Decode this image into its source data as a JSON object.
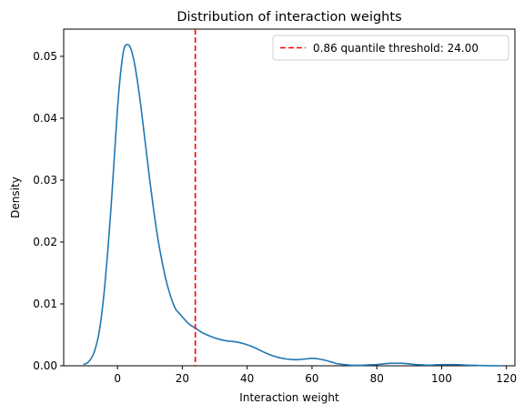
{
  "chart_data": {
    "type": "line",
    "title": "Distribution of interaction weights",
    "xlabel": "Interaction weight",
    "ylabel": "Density",
    "xlim": [
      -16.6,
      122.6
    ],
    "ylim": [
      0,
      0.0544
    ],
    "xticks": [
      0,
      20,
      40,
      60,
      80,
      100,
      120
    ],
    "yticks": [
      0.0,
      0.01,
      0.02,
      0.03,
      0.04,
      0.05
    ],
    "ytick_labels": [
      "0.00",
      "0.01",
      "0.02",
      "0.03",
      "0.04",
      "0.05"
    ],
    "grid": false,
    "legend_position": "top-right",
    "series": [
      {
        "kind": "kde",
        "color": "#1f77b4",
        "x": [
          -10.5,
          -9,
          -7.5,
          -6,
          -5,
          -4,
          -3,
          -2,
          -1,
          0,
          1,
          2,
          3,
          4,
          5,
          6,
          7,
          8,
          9,
          10,
          11,
          12,
          13,
          14,
          15,
          16,
          17,
          18,
          19,
          20,
          21,
          22,
          23,
          24,
          26,
          28,
          30,
          32,
          34,
          36,
          38,
          40,
          42,
          44,
          46,
          48,
          50,
          52,
          54,
          56,
          58,
          60,
          62,
          64,
          66,
          68,
          70,
          72,
          74,
          76,
          78,
          80,
          82,
          84,
          86,
          88,
          90,
          92,
          94,
          96,
          98,
          100,
          102,
          104,
          106,
          108,
          110,
          112,
          114,
          116,
          118.5
        ],
        "y": [
          0.0002,
          0.0006,
          0.0018,
          0.0045,
          0.0078,
          0.0125,
          0.0185,
          0.0255,
          0.0335,
          0.0415,
          0.0475,
          0.0512,
          0.0519,
          0.0514,
          0.0495,
          0.0465,
          0.0428,
          0.0385,
          0.0342,
          0.0298,
          0.0258,
          0.0221,
          0.0189,
          0.0162,
          0.0138,
          0.0119,
          0.0103,
          0.0091,
          0.0085,
          0.0079,
          0.0073,
          0.0068,
          0.0064,
          0.0061,
          0.0054,
          0.0049,
          0.0045,
          0.0042,
          0.004,
          0.0039,
          0.0037,
          0.0034,
          0.003,
          0.0025,
          0.002,
          0.0016,
          0.0013,
          0.0011,
          0.001,
          0.001,
          0.0011,
          0.0012,
          0.0011,
          0.0009,
          0.0006,
          0.0003,
          0.0002,
          0.0001,
          8e-05,
          0.0001,
          0.00015,
          0.0002,
          0.0003,
          0.0004,
          0.0004,
          0.0004,
          0.0003,
          0.0002,
          0.00015,
          0.0001,
          0.00015,
          0.0002,
          0.0002,
          0.0002,
          0.00015,
          0.0001,
          8e-05,
          4e-05,
          2e-05,
          1e-05,
          0.0
        ]
      }
    ],
    "threshold": {
      "x": 24.0,
      "color": "#ff0000",
      "style": "dashed",
      "label": "0.86 quantile threshold: 24.00"
    }
  }
}
